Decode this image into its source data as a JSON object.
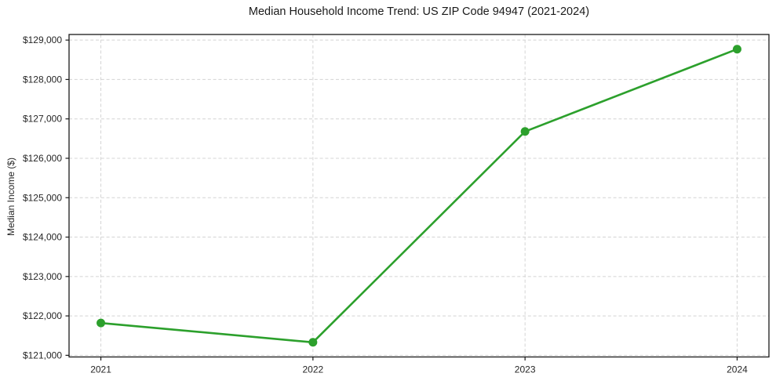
{
  "page": {
    "background": "#ffffff"
  },
  "chart_data": {
    "type": "line",
    "title": "Median Household Income Trend: US ZIP Code 94947 (2021-2024)",
    "xlabel": "",
    "ylabel": "Median Income ($)",
    "x": [
      2021,
      2022,
      2023,
      2024
    ],
    "xtick_labels": [
      "2021",
      "2022",
      "2023",
      "2024"
    ],
    "series": [
      {
        "name": "Median Income",
        "values": [
          121820,
          121330,
          126680,
          128770
        ]
      }
    ],
    "yticks": [
      121000,
      122000,
      123000,
      124000,
      125000,
      126000,
      127000,
      128000,
      129000
    ],
    "ytick_labels": [
      "$121,000",
      "$122,000",
      "$123,000",
      "$124,000",
      "$125,000",
      "$126,000",
      "$127,000",
      "$128,000",
      "$129,000"
    ],
    "xlim": [
      2020.85,
      2024.15
    ],
    "ylim": [
      120958,
      129142
    ],
    "grid": true,
    "legend": "none",
    "marker": "circle",
    "marker_radius": 5.5,
    "line_color": "#2ca02c",
    "grid_color": "#d4d4d4",
    "axis_color": "#1a1a1a",
    "text_color": "#262626"
  }
}
